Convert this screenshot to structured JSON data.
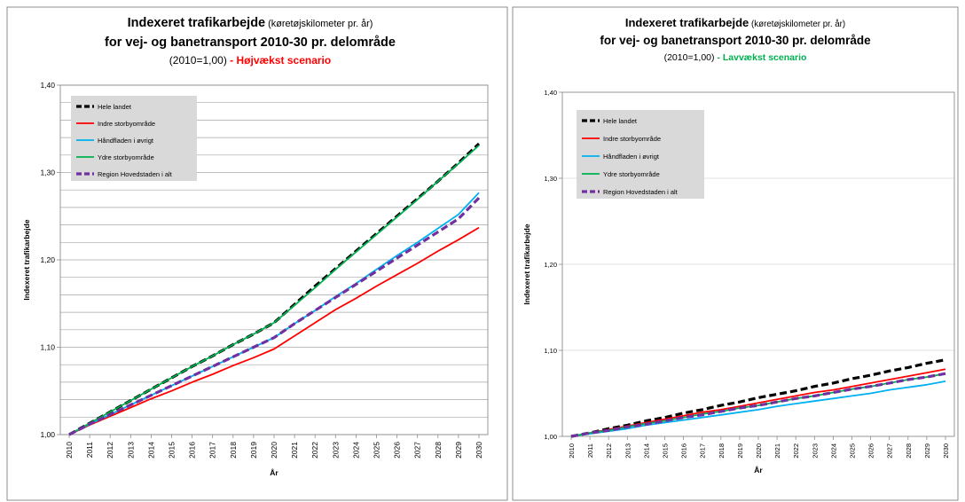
{
  "chart_data": [
    {
      "type": "line",
      "title_main": "Indexeret trafikarbejde",
      "title_sub": " (køretøjskilometer pr. år)",
      "title_line2": "for vej- og banetransport 2010-30 pr. delområde",
      "title_line3": "(2010=1,00)",
      "scenario": " - Højvækst  scenario",
      "scenario_color": "#ff0000",
      "xlabel": "År",
      "ylabel": "Indexeret trafikarbejde",
      "ylim": [
        1.0,
        1.4
      ],
      "yticks": [
        "1,00",
        "1,10",
        "1,20",
        "1,30",
        "1,40"
      ],
      "x": [
        "2010",
        "2011",
        "2012",
        "2013",
        "2014",
        "2015",
        "2016",
        "2017",
        "2018",
        "2019",
        "2020",
        "2021",
        "2022",
        "2023",
        "2024",
        "2025",
        "2026",
        "2027",
        "2028",
        "2029",
        "2030"
      ],
      "grid": true,
      "legend_position": "top-left",
      "series": [
        {
          "name": "Hele landet",
          "color": "#000000",
          "dash": true,
          "values": [
            1.0,
            1.013,
            1.026,
            1.039,
            1.052,
            1.065,
            1.078,
            1.09,
            1.103,
            1.115,
            1.128,
            1.149,
            1.17,
            1.19,
            1.21,
            1.23,
            1.25,
            1.27,
            1.29,
            1.311,
            1.333
          ]
        },
        {
          "name": "Indre storbyområde",
          "color": "#ff0000",
          "dash": false,
          "values": [
            1.0,
            1.011,
            1.021,
            1.031,
            1.041,
            1.05,
            1.06,
            1.069,
            1.079,
            1.088,
            1.098,
            1.113,
            1.128,
            1.143,
            1.156,
            1.17,
            1.183,
            1.196,
            1.21,
            1.223,
            1.237
          ]
        },
        {
          "name": "Håndfladen i øvrigt",
          "color": "#00b0f0",
          "dash": false,
          "values": [
            1.0,
            1.012,
            1.023,
            1.034,
            1.045,
            1.056,
            1.067,
            1.078,
            1.089,
            1.1,
            1.111,
            1.127,
            1.142,
            1.158,
            1.173,
            1.189,
            1.205,
            1.22,
            1.236,
            1.252,
            1.277
          ]
        },
        {
          "name": "Ydre storbyområde",
          "color": "#00b050",
          "dash": false,
          "values": [
            1.0,
            1.013,
            1.026,
            1.039,
            1.052,
            1.065,
            1.078,
            1.09,
            1.103,
            1.115,
            1.128,
            1.148,
            1.168,
            1.189,
            1.209,
            1.229,
            1.249,
            1.269,
            1.29,
            1.31,
            1.331
          ]
        },
        {
          "name": "Region Hovedstaden  i alt",
          "color": "#7030a0",
          "dash": true,
          "values": [
            1.0,
            1.012,
            1.023,
            1.034,
            1.045,
            1.056,
            1.067,
            1.078,
            1.089,
            1.1,
            1.111,
            1.127,
            1.142,
            1.157,
            1.172,
            1.187,
            1.202,
            1.217,
            1.232,
            1.247,
            1.271
          ]
        }
      ]
    },
    {
      "type": "line",
      "title_main": "Indexeret trafikarbejde",
      "title_sub": " (køretøjskilometer pr. år)",
      "title_line2": "for vej- og banetransport 2010-30 pr. delområde",
      "title_line3": "(2010=1,00)",
      "scenario": " - Lavvækst  scenario",
      "scenario_color": "#00b050",
      "xlabel": "År",
      "ylabel": "Indexeret trafikarbejde",
      "ylim": [
        1.0,
        1.4
      ],
      "yticks": [
        "1,00",
        "1,10",
        "1,20",
        "1,30",
        "1,40"
      ],
      "x": [
        "2010",
        "2011",
        "2012",
        "2013",
        "2014",
        "2015",
        "2016",
        "2017",
        "2018",
        "2019",
        "2020",
        "2021",
        "2022",
        "2023",
        "2024",
        "2025",
        "2026",
        "2027",
        "2028",
        "2029",
        "2030"
      ],
      "grid": false,
      "legend_position": "top-left",
      "series": [
        {
          "name": "Hele landet",
          "color": "#000000",
          "dash": true,
          "values": [
            1.0,
            1.004,
            1.009,
            1.013,
            1.018,
            1.022,
            1.027,
            1.031,
            1.036,
            1.04,
            1.045,
            1.049,
            1.053,
            1.058,
            1.062,
            1.067,
            1.071,
            1.076,
            1.08,
            1.085,
            1.089
          ]
        },
        {
          "name": "Indre storbyområde",
          "color": "#ff0000",
          "dash": false,
          "values": [
            1.0,
            1.004,
            1.008,
            1.012,
            1.016,
            1.02,
            1.024,
            1.028,
            1.031,
            1.035,
            1.039,
            1.043,
            1.047,
            1.051,
            1.054,
            1.058,
            1.062,
            1.066,
            1.07,
            1.074,
            1.078
          ]
        },
        {
          "name": "Håndfladen i øvrigt",
          "color": "#00b0f0",
          "dash": false,
          "values": [
            1.0,
            1.003,
            1.006,
            1.009,
            1.013,
            1.016,
            1.019,
            1.022,
            1.025,
            1.028,
            1.031,
            1.035,
            1.038,
            1.041,
            1.044,
            1.047,
            1.05,
            1.054,
            1.057,
            1.06,
            1.064
          ]
        },
        {
          "name": "Ydre storbyområde",
          "color": "#00b050",
          "dash": false,
          "values": [
            1.0,
            1.004,
            1.007,
            1.011,
            1.015,
            1.018,
            1.022,
            1.026,
            1.029,
            1.033,
            1.036,
            1.04,
            1.044,
            1.047,
            1.051,
            1.055,
            1.058,
            1.062,
            1.066,
            1.069,
            1.073
          ]
        },
        {
          "name": "Region Hovedstaden  i alt",
          "color": "#7030a0",
          "dash": true,
          "values": [
            1.0,
            1.004,
            1.007,
            1.011,
            1.014,
            1.018,
            1.022,
            1.025,
            1.029,
            1.033,
            1.036,
            1.04,
            1.044,
            1.047,
            1.051,
            1.055,
            1.058,
            1.062,
            1.066,
            1.069,
            1.073
          ]
        }
      ]
    }
  ]
}
